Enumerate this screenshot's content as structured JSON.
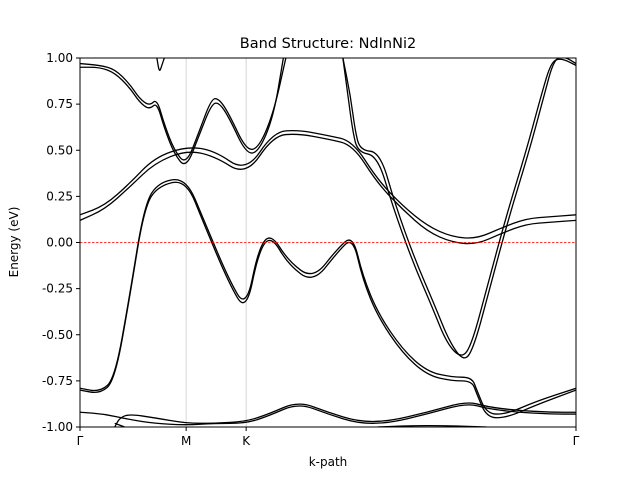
{
  "chart_data": {
    "type": "line",
    "title": "Band Structure: NdInNi2",
    "xlabel": "k-path",
    "ylabel": "Energy (eV)",
    "ylim": [
      -1.0,
      1.0
    ],
    "xlim": [
      0,
      1
    ],
    "y_ticks": [
      "-1.00",
      "-0.75",
      "-0.50",
      "-0.25",
      "0.00",
      "0.25",
      "0.50",
      "0.75",
      "1.00"
    ],
    "y_tick_values": [
      -1.0,
      -0.75,
      -0.5,
      -0.25,
      0.0,
      0.25,
      0.5,
      0.75,
      1.0
    ],
    "high_symmetry_points": [
      {
        "label": "Γ",
        "x": 0.0
      },
      {
        "label": "M",
        "x": 0.214
      },
      {
        "label": "K",
        "x": 0.335
      },
      {
        "label": "Γ",
        "x": 1.0
      }
    ],
    "fermi_level": 0.0,
    "line_color": "#000000",
    "fermi_color": "#ff0000",
    "vline_color": "#cccccc",
    "grid": false,
    "series": [
      {
        "values": [
          [
            0,
            0.95
          ],
          [
            0.04,
            0.95
          ],
          [
            0.07,
            0.92
          ],
          [
            0.1,
            0.84
          ],
          [
            0.12,
            0.76
          ],
          [
            0.14,
            0.72
          ],
          [
            0.155,
            0.76
          ],
          [
            0.17,
            0.62
          ],
          [
            0.19,
            0.48
          ],
          [
            0.214,
            0.4
          ],
          [
            0.24,
            0.58
          ],
          [
            0.265,
            0.75
          ],
          [
            0.28,
            0.76
          ],
          [
            0.3,
            0.68
          ],
          [
            0.335,
            0.48
          ],
          [
            0.36,
            0.49
          ],
          [
            0.39,
            0.68
          ],
          [
            0.41,
            1.0
          ]
        ]
      },
      {
        "values": [
          [
            0,
            0.97
          ],
          [
            0.04,
            0.96
          ],
          [
            0.07,
            0.94
          ],
          [
            0.1,
            0.86
          ],
          [
            0.12,
            0.78
          ],
          [
            0.14,
            0.74
          ],
          [
            0.155,
            0.78
          ],
          [
            0.17,
            0.64
          ],
          [
            0.19,
            0.5
          ],
          [
            0.214,
            0.42
          ],
          [
            0.24,
            0.6
          ],
          [
            0.265,
            0.78
          ],
          [
            0.28,
            0.78
          ],
          [
            0.3,
            0.7
          ],
          [
            0.335,
            0.5
          ],
          [
            0.36,
            0.51
          ],
          [
            0.39,
            0.7
          ],
          [
            0.415,
            1.0
          ]
        ]
      },
      {
        "values": [
          [
            0.155,
            1.0
          ],
          [
            0.16,
            0.92
          ],
          [
            0.165,
            0.96
          ],
          [
            0.17,
            1.0
          ]
        ]
      },
      {
        "values": [
          [
            0.53,
            1.0
          ],
          [
            0.54,
            0.8
          ],
          [
            0.55,
            0.6
          ],
          [
            0.56,
            0.49
          ],
          [
            0.6,
            0.47
          ],
          [
            0.63,
            0.2
          ],
          [
            0.67,
            -0.1
          ],
          [
            0.71,
            -0.35
          ],
          [
            0.74,
            -0.55
          ],
          [
            0.77,
            -0.63
          ],
          [
            0.79,
            -0.55
          ],
          [
            0.82,
            -0.25
          ],
          [
            0.86,
            0.15
          ],
          [
            0.9,
            0.5
          ],
          [
            0.93,
            0.8
          ],
          [
            0.95,
            0.98
          ],
          [
            0.97,
            1.0
          ],
          [
            1.0,
            0.96
          ]
        ]
      },
      {
        "values": [
          [
            0.53,
            1.0
          ],
          [
            0.545,
            0.8
          ],
          [
            0.555,
            0.6
          ],
          [
            0.565,
            0.5
          ],
          [
            0.605,
            0.49
          ],
          [
            0.635,
            0.21
          ],
          [
            0.675,
            -0.09
          ],
          [
            0.715,
            -0.34
          ],
          [
            0.745,
            -0.54
          ],
          [
            0.775,
            -0.65
          ],
          [
            0.795,
            -0.56
          ],
          [
            0.825,
            -0.26
          ],
          [
            0.865,
            0.14
          ],
          [
            0.905,
            0.49
          ],
          [
            0.935,
            0.79
          ],
          [
            0.955,
            0.99
          ],
          [
            0.975,
            1.01
          ],
          [
            1.0,
            0.97
          ]
        ]
      },
      {
        "values": [
          [
            0,
            0.12
          ],
          [
            0.05,
            0.18
          ],
          [
            0.1,
            0.3
          ],
          [
            0.15,
            0.43
          ],
          [
            0.214,
            0.5
          ],
          [
            0.27,
            0.47
          ],
          [
            0.335,
            0.36
          ],
          [
            0.39,
            0.58
          ],
          [
            0.44,
            0.59
          ],
          [
            0.5,
            0.56
          ],
          [
            0.55,
            0.53
          ],
          [
            0.6,
            0.32
          ],
          [
            0.65,
            0.18
          ],
          [
            0.7,
            0.06
          ],
          [
            0.75,
            0.0
          ],
          [
            0.8,
            -0.01
          ],
          [
            0.85,
            0.05
          ],
          [
            0.9,
            0.1
          ],
          [
            0.95,
            0.11
          ],
          [
            1.0,
            0.12
          ]
        ]
      },
      {
        "values": [
          [
            0,
            0.15
          ],
          [
            0.05,
            0.2
          ],
          [
            0.1,
            0.32
          ],
          [
            0.15,
            0.46
          ],
          [
            0.214,
            0.52
          ],
          [
            0.27,
            0.5
          ],
          [
            0.335,
            0.38
          ],
          [
            0.39,
            0.6
          ],
          [
            0.44,
            0.61
          ],
          [
            0.5,
            0.58
          ],
          [
            0.55,
            0.55
          ],
          [
            0.6,
            0.34
          ],
          [
            0.65,
            0.2
          ],
          [
            0.7,
            0.09
          ],
          [
            0.75,
            0.03
          ],
          [
            0.8,
            0.02
          ],
          [
            0.85,
            0.08
          ],
          [
            0.9,
            0.13
          ],
          [
            0.95,
            0.14
          ],
          [
            1.0,
            0.15
          ]
        ]
      },
      {
        "values": [
          [
            0,
            -0.8
          ],
          [
            0.04,
            -0.82
          ],
          [
            0.07,
            -0.75
          ],
          [
            0.1,
            -0.3
          ],
          [
            0.13,
            0.2
          ],
          [
            0.16,
            0.31
          ],
          [
            0.214,
            0.34
          ],
          [
            0.25,
            0.1
          ],
          [
            0.3,
            -0.22
          ],
          [
            0.335,
            -0.38
          ],
          [
            0.36,
            -0.05
          ],
          [
            0.385,
            0.04
          ],
          [
            0.42,
            -0.12
          ],
          [
            0.47,
            -0.22
          ],
          [
            0.52,
            -0.05
          ],
          [
            0.55,
            0.03
          ],
          [
            0.57,
            -0.2
          ],
          [
            0.6,
            -0.4
          ],
          [
            0.65,
            -0.6
          ],
          [
            0.7,
            -0.72
          ],
          [
            0.75,
            -0.75
          ],
          [
            0.79,
            -0.75
          ],
          [
            0.8,
            -0.82
          ],
          [
            0.82,
            -0.95
          ],
          [
            0.86,
            -0.95
          ],
          [
            0.92,
            -0.88
          ],
          [
            1.0,
            -0.8
          ]
        ]
      },
      {
        "values": [
          [
            0,
            -0.79
          ],
          [
            0.04,
            -0.81
          ],
          [
            0.07,
            -0.74
          ],
          [
            0.1,
            -0.29
          ],
          [
            0.13,
            0.21
          ],
          [
            0.16,
            0.33
          ],
          [
            0.214,
            0.35
          ],
          [
            0.25,
            0.12
          ],
          [
            0.3,
            -0.2
          ],
          [
            0.335,
            -0.36
          ],
          [
            0.36,
            -0.03
          ],
          [
            0.385,
            0.05
          ],
          [
            0.42,
            -0.1
          ],
          [
            0.47,
            -0.2
          ],
          [
            0.52,
            -0.03
          ],
          [
            0.55,
            0.04
          ],
          [
            0.57,
            -0.18
          ],
          [
            0.6,
            -0.38
          ],
          [
            0.65,
            -0.58
          ],
          [
            0.7,
            -0.7
          ],
          [
            0.75,
            -0.73
          ],
          [
            0.79,
            -0.73
          ],
          [
            0.8,
            -0.8
          ],
          [
            0.82,
            -0.93
          ],
          [
            0.86,
            -0.93
          ],
          [
            0.92,
            -0.86
          ],
          [
            1.0,
            -0.79
          ]
        ]
      },
      {
        "values": [
          [
            0,
            -0.92
          ],
          [
            0.05,
            -0.93
          ],
          [
            0.1,
            -0.96
          ],
          [
            0.15,
            -0.98
          ],
          [
            0.214,
            -0.99
          ],
          [
            0.27,
            -0.98
          ],
          [
            0.335,
            -0.98
          ],
          [
            0.38,
            -0.94
          ],
          [
            0.44,
            -0.87
          ],
          [
            0.5,
            -0.93
          ],
          [
            0.56,
            -0.98
          ],
          [
            0.62,
            -0.98
          ],
          [
            0.7,
            -0.93
          ],
          [
            0.78,
            -0.87
          ],
          [
            0.82,
            -0.9
          ],
          [
            0.88,
            -0.92
          ],
          [
            0.95,
            -0.93
          ],
          [
            1.0,
            -0.93
          ]
        ]
      },
      {
        "values": [
          [
            0.07,
            -1.0
          ],
          [
            0.08,
            -0.95
          ],
          [
            0.1,
            -0.93
          ],
          [
            0.15,
            -0.95
          ],
          [
            0.214,
            -0.98
          ],
          [
            0.27,
            -0.98
          ],
          [
            0.335,
            -0.97
          ],
          [
            0.38,
            -0.93
          ],
          [
            0.44,
            -0.86
          ],
          [
            0.5,
            -0.92
          ],
          [
            0.56,
            -0.97
          ],
          [
            0.62,
            -0.97
          ],
          [
            0.7,
            -0.92
          ],
          [
            0.78,
            -0.86
          ],
          [
            0.82,
            -0.89
          ],
          [
            0.88,
            -0.91
          ],
          [
            0.95,
            -0.92
          ],
          [
            1.0,
            -0.92
          ]
        ]
      },
      {
        "values": [
          [
            0.07,
            -0.98
          ],
          [
            0.09,
            -1.0
          ]
        ]
      },
      {
        "values": [
          [
            0.6,
            -1.0
          ],
          [
            0.7,
            -0.99
          ],
          [
            0.82,
            -1.0
          ]
        ]
      }
    ]
  }
}
